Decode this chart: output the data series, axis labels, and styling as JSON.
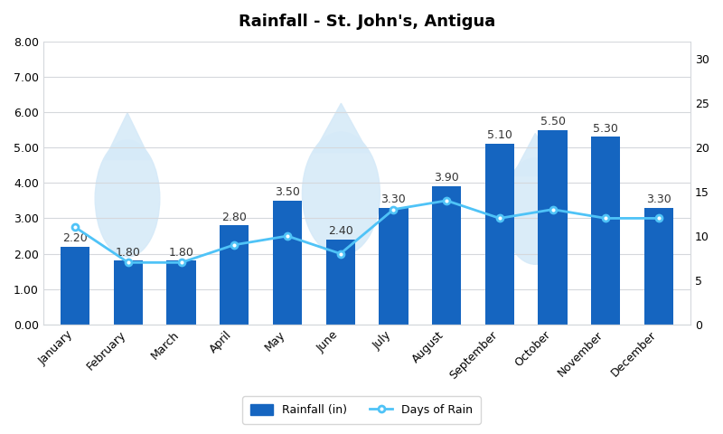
{
  "title": "Rainfall - St. John's, Antigua",
  "months": [
    "January",
    "February",
    "March",
    "April",
    "May",
    "June",
    "July",
    "August",
    "September",
    "October",
    "November",
    "December"
  ],
  "rainfall": [
    2.2,
    1.8,
    1.8,
    2.8,
    3.5,
    2.4,
    3.3,
    3.9,
    5.1,
    5.5,
    5.3,
    3.3
  ],
  "days_of_rain": [
    11,
    7,
    7,
    9,
    10,
    8,
    13,
    14,
    12,
    13,
    12,
    12
  ],
  "bar_color": "#1565C0",
  "line_color": "#4FC3F7",
  "marker_color": "#4FC3F7",
  "background_color": "#FFFFFF",
  "left_ylim": [
    0,
    8.0
  ],
  "left_yticks": [
    0.0,
    1.0,
    2.0,
    3.0,
    4.0,
    5.0,
    6.0,
    7.0,
    8.0
  ],
  "left_yticklabels": [
    "0.00",
    "1.00",
    "2.00",
    "3.00",
    "4.00",
    "5.00",
    "6.00",
    "7.00",
    "8.00"
  ],
  "right_ylim": [
    0,
    32
  ],
  "right_yticks": [
    0,
    5,
    10,
    15,
    20,
    25,
    30
  ],
  "title_fontsize": 13,
  "label_fontsize": 9,
  "tick_fontsize": 9,
  "legend_label_bar": "Rainfall (in)",
  "legend_label_line": "Days of Rain",
  "watermark_color": "#D6EAF8",
  "grid_color": "#D5D8DC"
}
